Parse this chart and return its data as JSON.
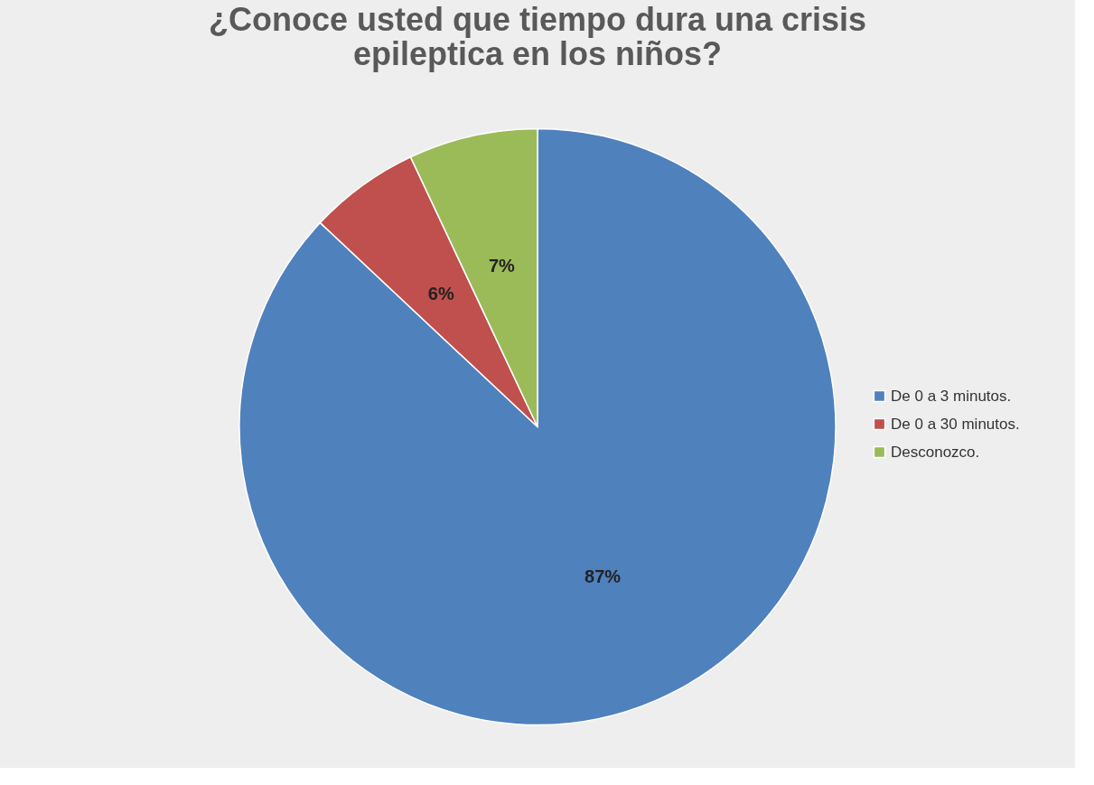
{
  "chart_data": {
    "type": "pie",
    "title": "¿Conoce usted que tiempo dura una crisis epileptica en los niños?",
    "categories": [
      "De 0 a 3 minutos.",
      "De 0 a 30 minutos.",
      "Desconozco."
    ],
    "values": [
      87,
      6,
      7
    ],
    "colors": [
      "#4f81bd",
      "#c0504d",
      "#9bbb59"
    ],
    "value_labels": [
      "87%",
      "6%",
      "7%"
    ],
    "legend": "right"
  }
}
